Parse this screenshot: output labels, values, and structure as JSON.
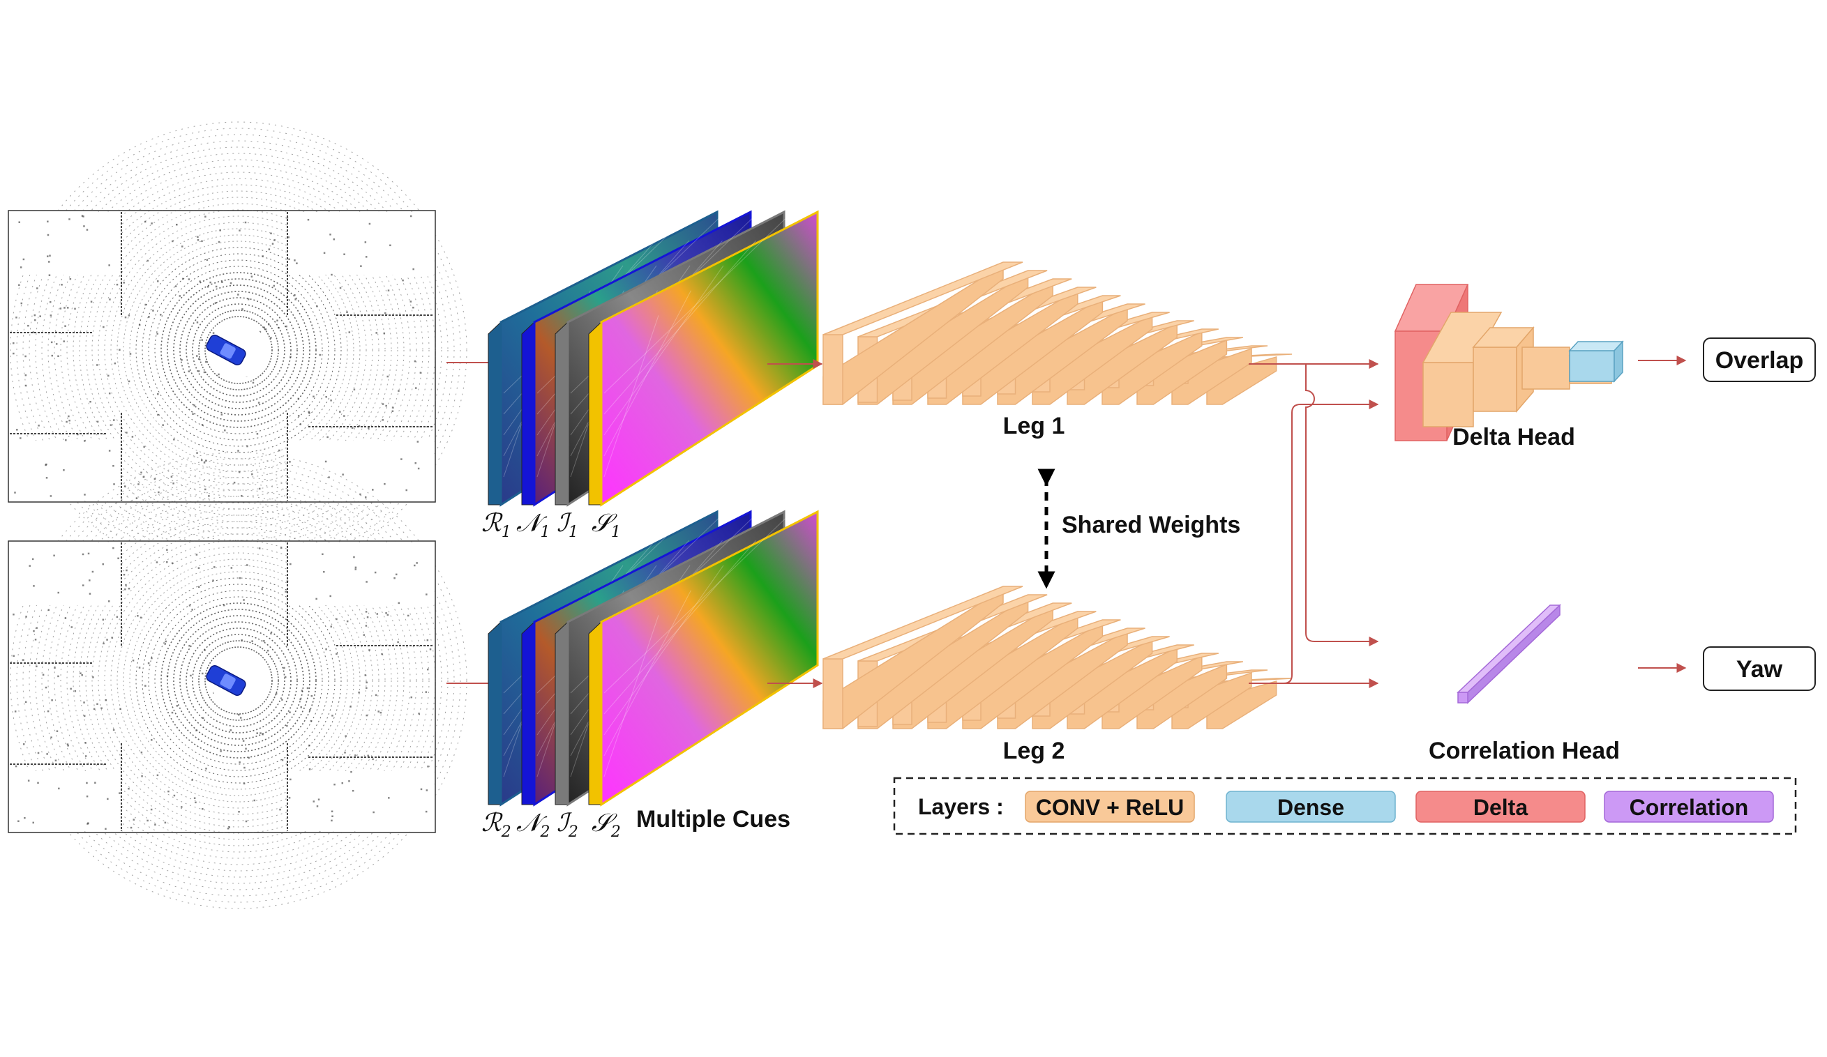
{
  "inputs": {
    "scan1_symbols": [
      {
        "letter": "ℛ",
        "sub": "1"
      },
      {
        "letter": "𝒩",
        "sub": "1"
      },
      {
        "letter": "ℐ",
        "sub": "1"
      },
      {
        "letter": "𝒮",
        "sub": "1"
      }
    ],
    "scan2_symbols": [
      {
        "letter": "ℛ",
        "sub": "2"
      },
      {
        "letter": "𝒩",
        "sub": "2"
      },
      {
        "letter": "ℐ",
        "sub": "2"
      },
      {
        "letter": "𝒮",
        "sub": "2"
      }
    ],
    "cues_label": "Multiple Cues"
  },
  "network": {
    "leg1_label": "Leg 1",
    "leg2_label": "Leg 2",
    "shared_label": "Shared Weights"
  },
  "heads": {
    "delta_label": "Delta Head",
    "correlation_label": "Correlation Head"
  },
  "outputs": {
    "overlap": "Overlap",
    "yaw": "Yaw"
  },
  "legend": {
    "title": "Layers :",
    "items": [
      {
        "label": "CONV + ReLU",
        "color": "#f9c999",
        "border": "#e3a66a"
      },
      {
        "label": "Dense",
        "color": "#a9d8ec",
        "border": "#6fb3cf"
      },
      {
        "label": "Delta",
        "color": "#f58b8b",
        "border": "#e06262"
      },
      {
        "label": "Correlation",
        "color": "#cc99f5",
        "border": "#a469d8"
      }
    ]
  },
  "colors": {
    "arrow": "#c0504d",
    "conv": "#f9c999",
    "dense": "#a9d8ec",
    "delta": "#f58b8b",
    "correlation": "#cc99f5",
    "car": "#1f3fd6"
  }
}
